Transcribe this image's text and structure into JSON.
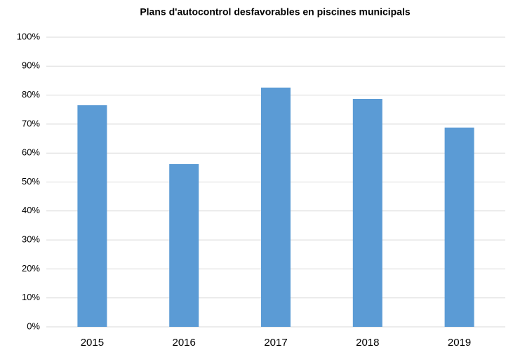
{
  "chart_data": {
    "type": "bar",
    "title": "Plans d'autocontrol desfavorables en piscines municipals",
    "categories": [
      "2015",
      "2016",
      "2017",
      "2018",
      "2019"
    ],
    "values": [
      76.5,
      56.2,
      82.6,
      78.7,
      68.8
    ],
    "color": "#5b9bd5",
    "ylim": [
      0,
      100
    ],
    "yticks": [
      {
        "value": 0,
        "label": "0%"
      },
      {
        "value": 10,
        "label": "10%"
      },
      {
        "value": 20,
        "label": "20%"
      },
      {
        "value": 30,
        "label": "30%"
      },
      {
        "value": 40,
        "label": "40%"
      },
      {
        "value": 50,
        "label": "50%"
      },
      {
        "value": 60,
        "label": "60%"
      },
      {
        "value": 70,
        "label": "70%"
      },
      {
        "value": 80,
        "label": "80%"
      },
      {
        "value": 90,
        "label": "90%"
      },
      {
        "value": 100,
        "label": "100%"
      }
    ],
    "grid": true
  }
}
